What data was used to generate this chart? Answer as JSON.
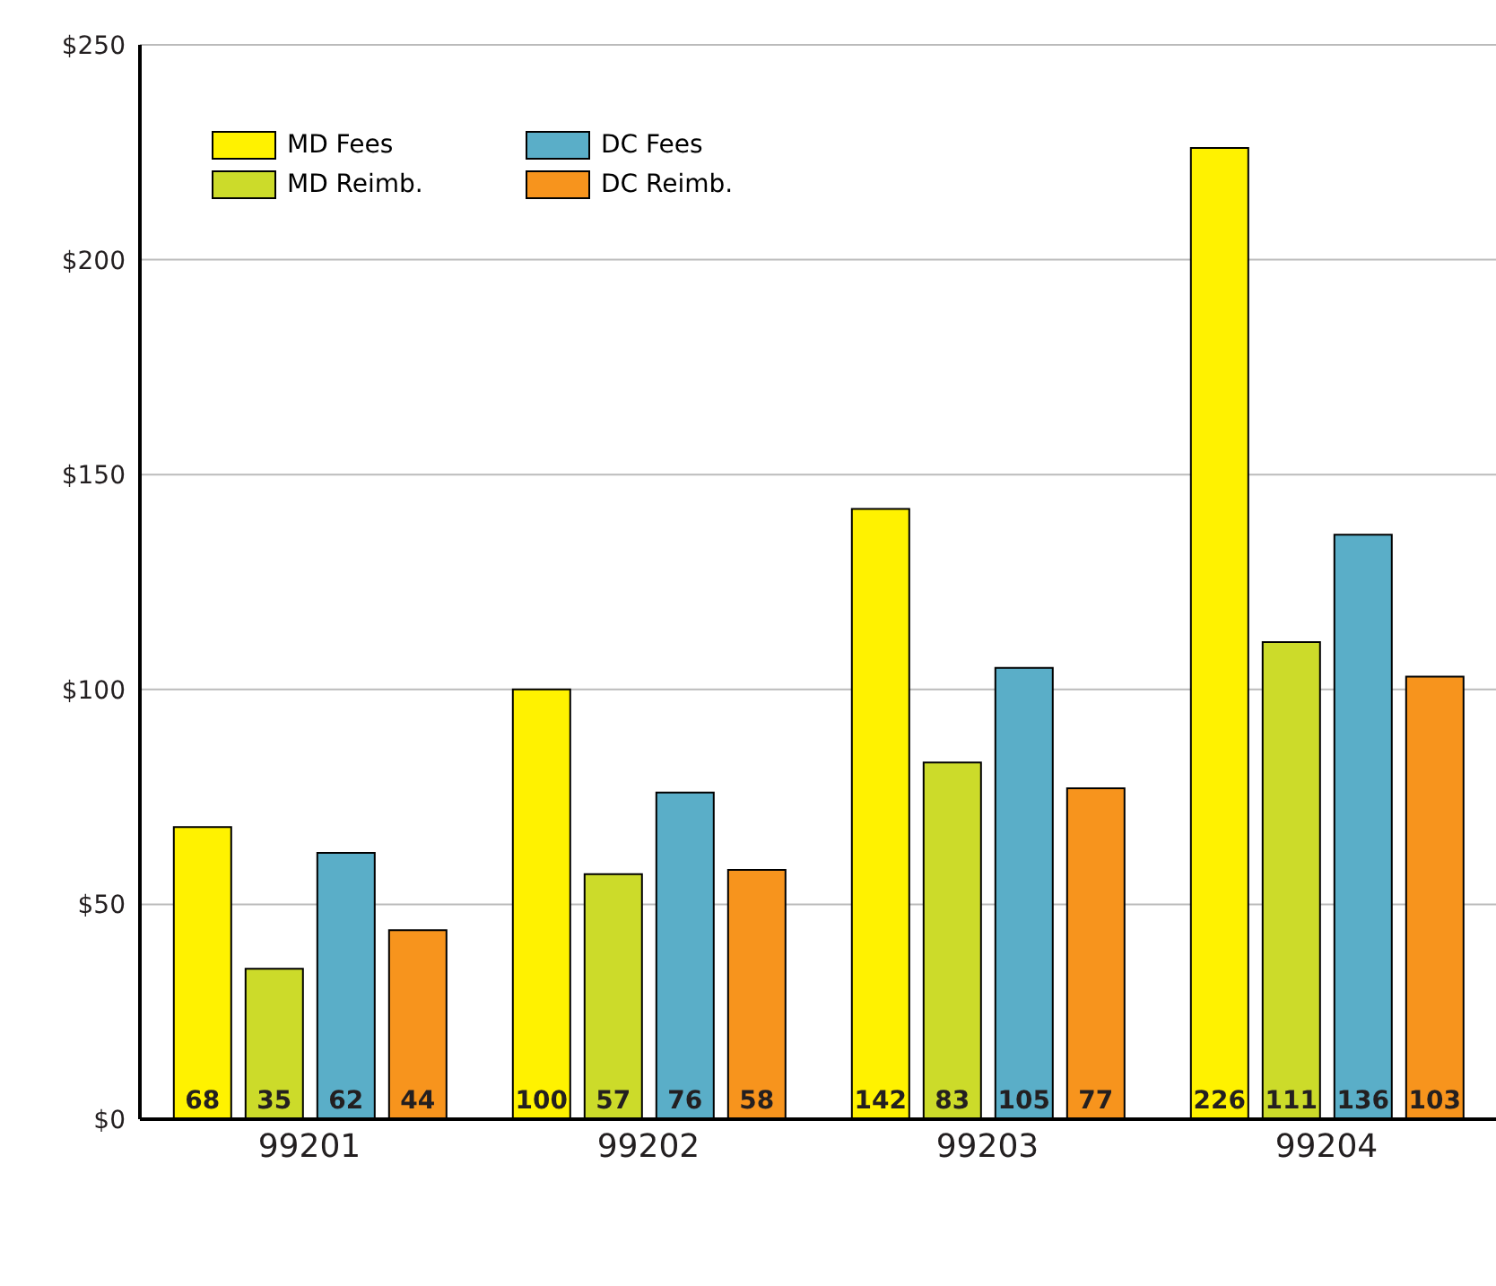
{
  "chart_data": {
    "type": "bar",
    "categories": [
      "99201",
      "99202",
      "99203",
      "99204"
    ],
    "series": [
      {
        "name": "MD Fees",
        "color": "#fff200",
        "values": [
          68,
          100,
          142,
          226
        ]
      },
      {
        "name": "MD Reimb.",
        "color": "#ccdb2a",
        "values": [
          35,
          57,
          83,
          111
        ]
      },
      {
        "name": "DC Fees",
        "color": "#5aaec8",
        "values": [
          62,
          76,
          105,
          136
        ]
      },
      {
        "name": "DC Reimb.",
        "color": "#f7941d",
        "values": [
          44,
          58,
          77,
          103
        ]
      }
    ],
    "ylim": [
      0,
      250
    ],
    "yticks": [
      {
        "value": 0,
        "label": "$0"
      },
      {
        "value": 50,
        "label": "$50"
      },
      {
        "value": 100,
        "label": "$100"
      },
      {
        "value": 150,
        "label": "$150"
      },
      {
        "value": 200,
        "label": "$200"
      },
      {
        "value": 250,
        "label": "$250"
      }
    ],
    "grid": "y",
    "legend": "top left",
    "data_labels": true
  }
}
